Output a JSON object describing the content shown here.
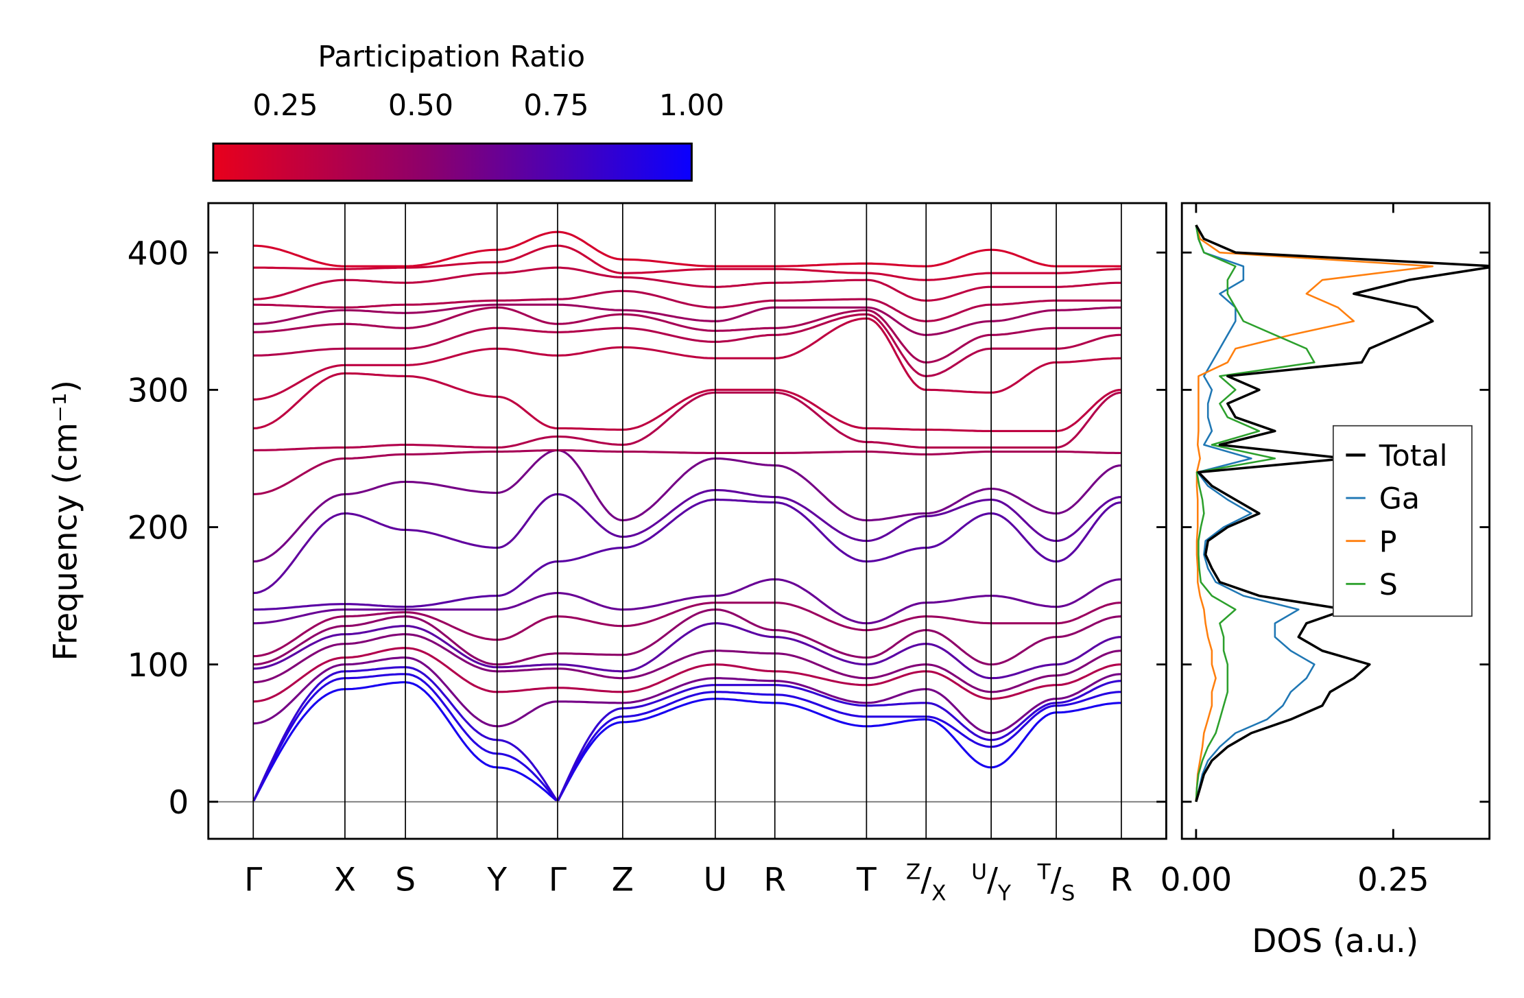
{
  "chart_data": [
    {
      "type": "line",
      "title": "",
      "xlabel": "",
      "ylabel": "Frequency (cm⁻¹)",
      "ylim": [
        -27,
        436
      ],
      "yticks": [
        0,
        100,
        200,
        300,
        400
      ],
      "kpoint_labels": [
        "Γ",
        "X",
        "S",
        "Y",
        "Γ",
        "Z",
        "U",
        "R",
        "T",
        "Z|X",
        "U|Y",
        "T|S",
        "R"
      ],
      "kpoint_positions": [
        0,
        1.0,
        1.66,
        2.66,
        3.32,
        4.03,
        5.04,
        5.69,
        6.69,
        7.34,
        8.05,
        8.76,
        9.47
      ],
      "xlim": [
        -0.49,
        9.96
      ],
      "zero_line": true,
      "colorbar": {
        "title": "Participation Ratio",
        "range": [
          0.117,
          1.0
        ],
        "ticks": [
          "0.25",
          "0.50",
          "0.75",
          "1.00"
        ],
        "tick_values": [
          0.25,
          0.5,
          0.75,
          1.0
        ],
        "low_color": "#e8001c",
        "high_color": "#0a00ff"
      },
      "bands_note_values_at_kpoints_cm-1": true,
      "bands": [
        {
          "pr": 0.95,
          "f": [
            0,
            82,
            87,
            25,
            0,
            58,
            75,
            72,
            55,
            60,
            25,
            65,
            72
          ]
        },
        {
          "pr": 0.9,
          "f": [
            0,
            90,
            93,
            35,
            0,
            62,
            80,
            78,
            62,
            62,
            40,
            70,
            80
          ]
        },
        {
          "pr": 0.85,
          "f": [
            0,
            95,
            98,
            45,
            0,
            68,
            85,
            85,
            70,
            72,
            45,
            72,
            88
          ]
        },
        {
          "pr": 0.6,
          "f": [
            57,
            100,
            105,
            55,
            73,
            72,
            90,
            88,
            72,
            82,
            50,
            75,
            93
          ]
        },
        {
          "pr": 0.35,
          "f": [
            73,
            105,
            112,
            80,
            83,
            80,
            100,
            95,
            85,
            95,
            75,
            85,
            100
          ]
        },
        {
          "pr": 0.55,
          "f": [
            87,
            115,
            122,
            95,
            97,
            90,
            110,
            108,
            90,
            100,
            80,
            92,
            110
          ]
        },
        {
          "pr": 0.7,
          "f": [
            97,
            122,
            128,
            98,
            100,
            95,
            130,
            120,
            100,
            115,
            90,
            100,
            120
          ]
        },
        {
          "pr": 0.5,
          "f": [
            100,
            128,
            135,
            100,
            108,
            107,
            140,
            125,
            105,
            125,
            100,
            120,
            135
          ]
        },
        {
          "pr": 0.45,
          "f": [
            106,
            135,
            138,
            118,
            135,
            128,
            145,
            145,
            125,
            135,
            130,
            130,
            145
          ]
        },
        {
          "pr": 0.65,
          "f": [
            130,
            140,
            140,
            140,
            152,
            140,
            150,
            162,
            130,
            145,
            150,
            142,
            162
          ]
        },
        {
          "pr": 0.7,
          "f": [
            140,
            144,
            142,
            150,
            175,
            185,
            220,
            218,
            175,
            185,
            210,
            175,
            218
          ]
        },
        {
          "pr": 0.68,
          "f": [
            152,
            210,
            198,
            185,
            224,
            193,
            227,
            222,
            190,
            208,
            220,
            190,
            222
          ]
        },
        {
          "pr": 0.6,
          "f": [
            175,
            224,
            233,
            225,
            256,
            205,
            250,
            245,
            205,
            210,
            228,
            210,
            245
          ]
        },
        {
          "pr": 0.4,
          "f": [
            224,
            250,
            253,
            255,
            256,
            255,
            254,
            254,
            255,
            253,
            255,
            255,
            254
          ]
        },
        {
          "pr": 0.35,
          "f": [
            256,
            258,
            260,
            258,
            266,
            260,
            298,
            298,
            262,
            258,
            258,
            258,
            298
          ]
        },
        {
          "pr": 0.3,
          "f": [
            272,
            312,
            310,
            295,
            272,
            271,
            300,
            300,
            272,
            271,
            270,
            270,
            300
          ]
        },
        {
          "pr": 0.3,
          "f": [
            293,
            318,
            318,
            330,
            325,
            331,
            323,
            323,
            352,
            300,
            298,
            320,
            323
          ]
        },
        {
          "pr": 0.35,
          "f": [
            325,
            330,
            330,
            345,
            342,
            345,
            335,
            340,
            355,
            310,
            330,
            330,
            340
          ]
        },
        {
          "pr": 0.4,
          "f": [
            342,
            348,
            345,
            360,
            348,
            355,
            343,
            345,
            358,
            320,
            340,
            345,
            345
          ]
        },
        {
          "pr": 0.45,
          "f": [
            348,
            358,
            356,
            362,
            362,
            358,
            350,
            360,
            360,
            340,
            350,
            358,
            360
          ]
        },
        {
          "pr": 0.35,
          "f": [
            362,
            360,
            362,
            365,
            366,
            372,
            360,
            365,
            366,
            350,
            362,
            365,
            365
          ]
        },
        {
          "pr": 0.3,
          "f": [
            366,
            380,
            378,
            385,
            389,
            382,
            375,
            378,
            380,
            365,
            375,
            375,
            378
          ]
        },
        {
          "pr": 0.25,
          "f": [
            389,
            388,
            389,
            393,
            405,
            385,
            388,
            388,
            385,
            380,
            385,
            385,
            388
          ]
        },
        {
          "pr": 0.2,
          "f": [
            405,
            390,
            390,
            402,
            415,
            395,
            390,
            390,
            392,
            390,
            402,
            390,
            390
          ]
        }
      ]
    },
    {
      "type": "line",
      "orientation": "horizontal",
      "xlabel": "DOS (a.u.)",
      "xticks": [
        "0.00",
        "0.25"
      ],
      "xtick_values": [
        0,
        0.25
      ],
      "xlim": [
        -0.018,
        0.372
      ],
      "ylim": [
        -27,
        436
      ],
      "legend_position": "center-right",
      "frequencies": [
        0,
        10,
        20,
        30,
        40,
        50,
        60,
        70,
        80,
        90,
        100,
        110,
        120,
        130,
        140,
        150,
        160,
        170,
        180,
        190,
        200,
        210,
        220,
        230,
        240,
        250,
        260,
        270,
        280,
        290,
        300,
        310,
        320,
        330,
        340,
        350,
        360,
        370,
        380,
        390,
        400,
        410,
        420
      ],
      "series": [
        {
          "name": "Total",
          "color": "#000000",
          "values": [
            0,
            0.005,
            0.01,
            0.02,
            0.04,
            0.07,
            0.12,
            0.16,
            0.17,
            0.2,
            0.22,
            0.16,
            0.13,
            0.14,
            0.19,
            0.08,
            0.03,
            0.02,
            0.012,
            0.015,
            0.04,
            0.08,
            0.05,
            0.02,
            0.003,
            0.19,
            0.03,
            0.1,
            0.05,
            0.04,
            0.08,
            0.04,
            0.21,
            0.22,
            0.26,
            0.3,
            0.28,
            0.2,
            0.27,
            0.38,
            0.05,
            0.01,
            0
          ]
        },
        {
          "name": "Ga",
          "color": "#1f77b4",
          "values": [
            0,
            0.004,
            0.008,
            0.015,
            0.03,
            0.05,
            0.09,
            0.11,
            0.12,
            0.14,
            0.15,
            0.12,
            0.1,
            0.1,
            0.13,
            0.06,
            0.025,
            0.015,
            0.01,
            0.012,
            0.035,
            0.07,
            0.04,
            0.015,
            0.002,
            0.07,
            0.01,
            0.02,
            0.015,
            0.015,
            0.02,
            0.01,
            0.02,
            0.03,
            0.04,
            0.05,
            0.05,
            0.03,
            0.06,
            0.06,
            0.01,
            0.003,
            0
          ]
        },
        {
          "name": "P",
          "color": "#ff7f0e",
          "values": [
            0,
            0.001,
            0.002,
            0.005,
            0.008,
            0.01,
            0.015,
            0.02,
            0.02,
            0.025,
            0.02,
            0.02,
            0.015,
            0.012,
            0.01,
            0.005,
            0.002,
            0.002,
            0.001,
            0.001,
            0.002,
            0.002,
            0.002,
            0.001,
            0.001,
            0.005,
            0.002,
            0.003,
            0.003,
            0.003,
            0.003,
            0.003,
            0.04,
            0.05,
            0.12,
            0.2,
            0.18,
            0.14,
            0.16,
            0.3,
            0.03,
            0.005,
            0
          ]
        },
        {
          "name": "S",
          "color": "#2ca02c",
          "values": [
            0,
            0.001,
            0.003,
            0.008,
            0.015,
            0.025,
            0.03,
            0.035,
            0.04,
            0.04,
            0.04,
            0.035,
            0.035,
            0.03,
            0.05,
            0.02,
            0.006,
            0.004,
            0.003,
            0.003,
            0.006,
            0.01,
            0.008,
            0.004,
            0.001,
            0.1,
            0.02,
            0.08,
            0.04,
            0.03,
            0.05,
            0.03,
            0.15,
            0.14,
            0.1,
            0.06,
            0.05,
            0.04,
            0.04,
            0.05,
            0.01,
            0.003,
            0
          ]
        }
      ]
    }
  ]
}
